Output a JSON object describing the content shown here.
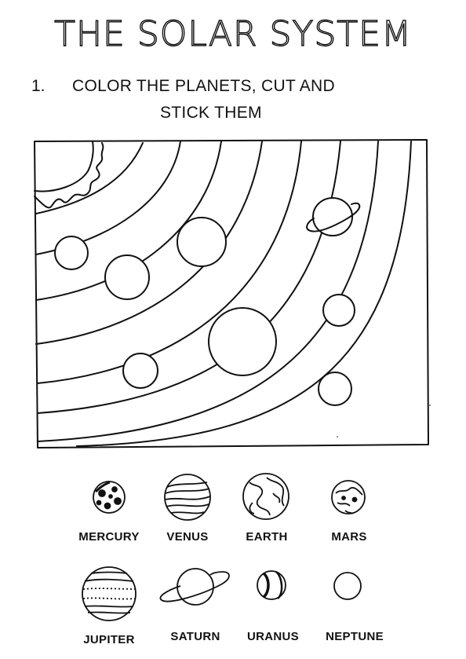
{
  "title": "THE SOLAR SYSTEM",
  "instruction": {
    "number": "1.",
    "line1": "COLOR THE PLANETS, CUT AND",
    "line2": "STICK THEM"
  },
  "planets": [
    {
      "label": "MERCURY"
    },
    {
      "label": "VENUS"
    },
    {
      "label": "EARTH"
    },
    {
      "label": "MARS"
    },
    {
      "label": "JUPITER"
    },
    {
      "label": "SATURN"
    },
    {
      "label": "URANUS"
    },
    {
      "label": "NEPTUNE"
    }
  ]
}
